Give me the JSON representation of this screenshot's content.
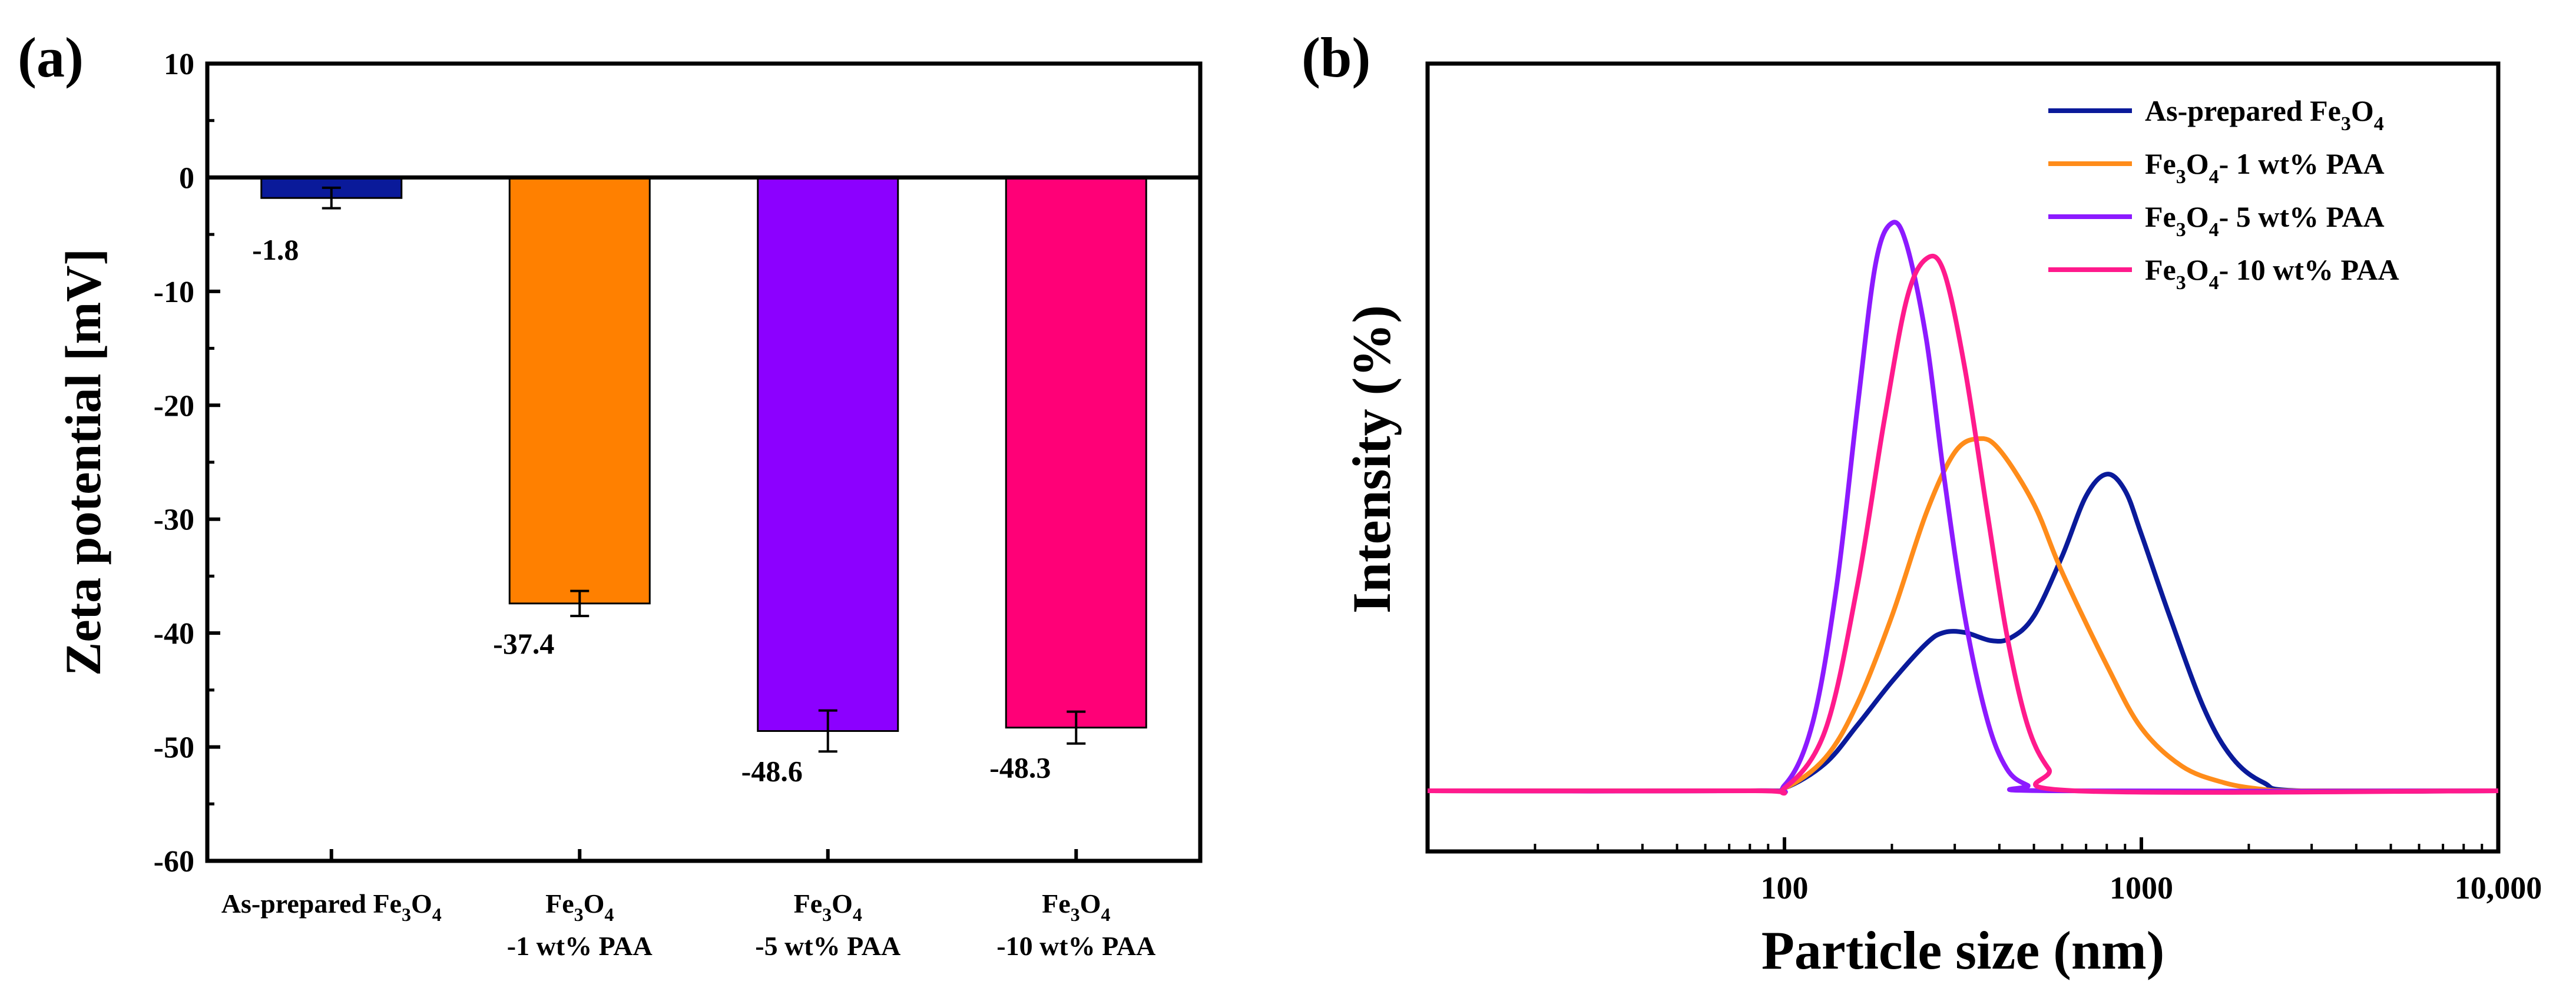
{
  "chart_data": [
    {
      "panel_label": "(a)",
      "type": "bar",
      "ylabel": "Zeta potential [mV]",
      "ylim": [
        -60,
        10
      ],
      "yticks": [
        10,
        0,
        -10,
        -20,
        -30,
        -40,
        -50,
        -60
      ],
      "ytick_labels": [
        "10",
        "0",
        "-10",
        "-20",
        "-30",
        "-40",
        "-50",
        "-60"
      ],
      "categories": [
        {
          "line1": "As-prepared Fe",
          "sub": "3",
          "mid": "O",
          "sub2": "4",
          "line2": ""
        },
        {
          "line1": "Fe",
          "sub": "3",
          "mid": "O",
          "sub2": "4",
          "line2": "-1 wt%  PAA"
        },
        {
          "line1": "Fe",
          "sub": "3",
          "mid": "O",
          "sub2": "4",
          "line2": "-5 wt%  PAA"
        },
        {
          "line1": "Fe",
          "sub": "3",
          "mid": "O",
          "sub2": "4",
          "line2": "-10 wt%  PAA"
        }
      ],
      "values": [
        -1.8,
        -37.4,
        -48.6,
        -48.3
      ],
      "value_labels": [
        "-1.8",
        "-37.4",
        "-48.6",
        "-48.3"
      ],
      "errors": [
        0.9,
        1.1,
        1.8,
        1.4
      ],
      "colors": [
        "#0a1a9a",
        "#ff8000",
        "#8c00ff",
        "#ff0077"
      ]
    },
    {
      "panel_label": "(b)",
      "type": "line",
      "xscale": "log",
      "xlabel": "Particle size (nm)",
      "ylabel": "Intensity (%)",
      "xlim": [
        10,
        10000
      ],
      "xtick_labels": [
        "100",
        "1000",
        "10,000"
      ],
      "xtick_values": [
        100,
        1000,
        10000
      ],
      "ylim": [
        0,
        22.5
      ],
      "legend_position": "top-right",
      "series": [
        {
          "name_pre": "As-prepared Fe",
          "sub1": "3",
          "mid": "O",
          "sub2": "4",
          "name_post": "",
          "color": "#0a1a9a",
          "x": [
            80,
            100,
            130,
            160,
            200,
            250,
            280,
            320,
            380,
            430,
            500,
            600,
            700,
            800,
            900,
            1000,
            1200,
            1500,
            1800,
            2200,
            2800,
            10000
          ],
          "y": [
            0,
            0.1,
            1.0,
            2.4,
            4.0,
            5.4,
            5.8,
            5.8,
            5.5,
            5.6,
            6.4,
            8.6,
            10.8,
            11.6,
            11.0,
            9.4,
            6.4,
            3.0,
            1.2,
            0.3,
            0,
            0
          ]
        },
        {
          "name_pre": "Fe",
          "sub1": "3",
          "mid": "O",
          "sub2": "4",
          "name_post": "- 1 wt% PAA",
          "color": "#ff8c1a",
          "x": [
            80,
            100,
            130,
            160,
            200,
            250,
            300,
            350,
            400,
            500,
            600,
            800,
            1000,
            1300,
            1700,
            2200,
            2800,
            10000
          ],
          "y": [
            0,
            0.1,
            1.2,
            3.2,
            6.4,
            10.2,
            12.4,
            12.9,
            12.5,
            10.5,
            8.0,
            4.6,
            2.3,
            0.9,
            0.3,
            0.05,
            0,
            0
          ]
        },
        {
          "name_pre": "Fe",
          "sub1": "3",
          "mid": "O",
          "sub2": "4",
          "name_post": "- 5 wt% PAA",
          "color": "#8c1aff",
          "x": [
            80,
            100,
            120,
            140,
            160,
            180,
            200,
            220,
            250,
            280,
            320,
            370,
            420,
            480,
            550,
            10000
          ],
          "y": [
            0,
            0.2,
            2.5,
            7.5,
            14.0,
            19.3,
            20.8,
            20.0,
            16.5,
            11.5,
            6.4,
            2.6,
            0.8,
            0.2,
            0,
            0
          ]
        },
        {
          "name_pre": "Fe",
          "sub1": "3",
          "mid": "O",
          "sub2": "4",
          "name_post": "- 10 wt% PAA",
          "color": "#ff1a8c",
          "x": [
            80,
            100,
            130,
            160,
            190,
            220,
            250,
            280,
            320,
            370,
            420,
            480,
            550,
            650,
            10000
          ],
          "y": [
            0,
            0.1,
            2.2,
            7.5,
            13.5,
            18.0,
            19.5,
            19.0,
            15.5,
            10.2,
            5.7,
            2.4,
            0.8,
            0,
            0
          ]
        }
      ]
    }
  ]
}
